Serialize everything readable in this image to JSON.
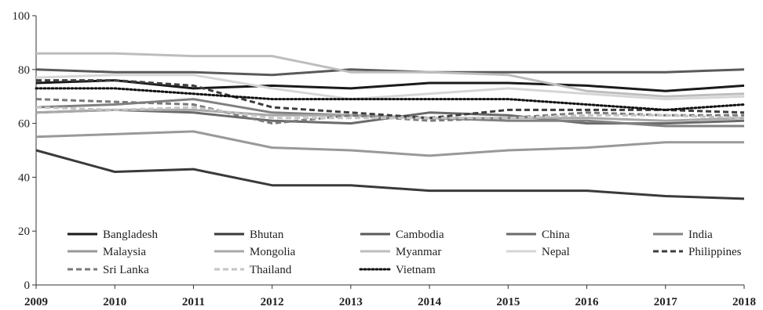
{
  "chart_data": {
    "type": "line",
    "title": "",
    "xlabel": "",
    "ylabel": "",
    "x": [
      "2009",
      "2010",
      "2011",
      "2012",
      "2013",
      "2014",
      "2015",
      "2016",
      "2017",
      "2018"
    ],
    "ylim": [
      0,
      100
    ],
    "yticks": [
      "0",
      "20",
      "40",
      "60",
      "80",
      "100"
    ],
    "grid": false,
    "legend_position": "bottom-left inside plot",
    "series": [
      {
        "name": "Bangladesh",
        "color": "#1a1a1a",
        "style": "solid",
        "values": [
          75,
          76,
          73,
          74,
          73,
          75,
          75,
          74,
          72,
          74
        ]
      },
      {
        "name": "Bhutan",
        "color": "#3a3a3a",
        "style": "solid",
        "values": [
          50,
          42,
          43,
          37,
          37,
          35,
          35,
          35,
          33,
          32
        ]
      },
      {
        "name": "Cambodia",
        "color": "#5a5a5a",
        "style": "solid",
        "values": [
          80,
          79,
          79,
          78,
          80,
          79,
          79,
          79,
          79,
          80
        ]
      },
      {
        "name": "China",
        "color": "#6a6a6a",
        "style": "solid",
        "values": [
          64,
          65,
          64,
          61,
          60,
          64,
          63,
          60,
          60,
          61
        ]
      },
      {
        "name": "India",
        "color": "#808080",
        "style": "solid",
        "values": [
          66,
          67,
          69,
          64,
          63,
          62,
          61,
          61,
          59,
          59
        ]
      },
      {
        "name": "Malaysia",
        "color": "#999999",
        "style": "solid",
        "values": [
          55,
          56,
          57,
          51,
          50,
          48,
          50,
          51,
          53,
          53
        ]
      },
      {
        "name": "Mongolia",
        "color": "#a8a8a8",
        "style": "solid",
        "values": [
          64,
          65,
          65,
          63,
          63,
          62,
          62,
          62,
          61,
          62
        ]
      },
      {
        "name": "Myanmar",
        "color": "#bdbdbd",
        "style": "solid",
        "values": [
          86,
          86,
          85,
          85,
          79,
          79,
          78,
          72,
          70,
          71
        ]
      },
      {
        "name": "Nepal",
        "color": "#d6d6d6",
        "style": "solid",
        "values": [
          77,
          78,
          78,
          73,
          69,
          71,
          73,
          71,
          69,
          70
        ]
      },
      {
        "name": "Philippines",
        "color": "#3d3d3d",
        "style": "dashed",
        "values": [
          76,
          76,
          74,
          66,
          64,
          62,
          65,
          65,
          65,
          64
        ]
      },
      {
        "name": "Sri Lanka",
        "color": "#7a7a7a",
        "style": "dashed",
        "values": [
          69,
          68,
          67,
          60,
          63,
          61,
          62,
          64,
          63,
          63
        ]
      },
      {
        "name": "Thailand",
        "color": "#c4c4c4",
        "style": "dashed",
        "values": [
          66,
          65,
          66,
          62,
          62,
          62,
          62,
          63,
          63,
          62
        ]
      },
      {
        "name": "Vietnam",
        "color": "#111111",
        "style": "dotted",
        "values": [
          73,
          73,
          71,
          69,
          69,
          69,
          69,
          67,
          65,
          67
        ]
      }
    ]
  }
}
